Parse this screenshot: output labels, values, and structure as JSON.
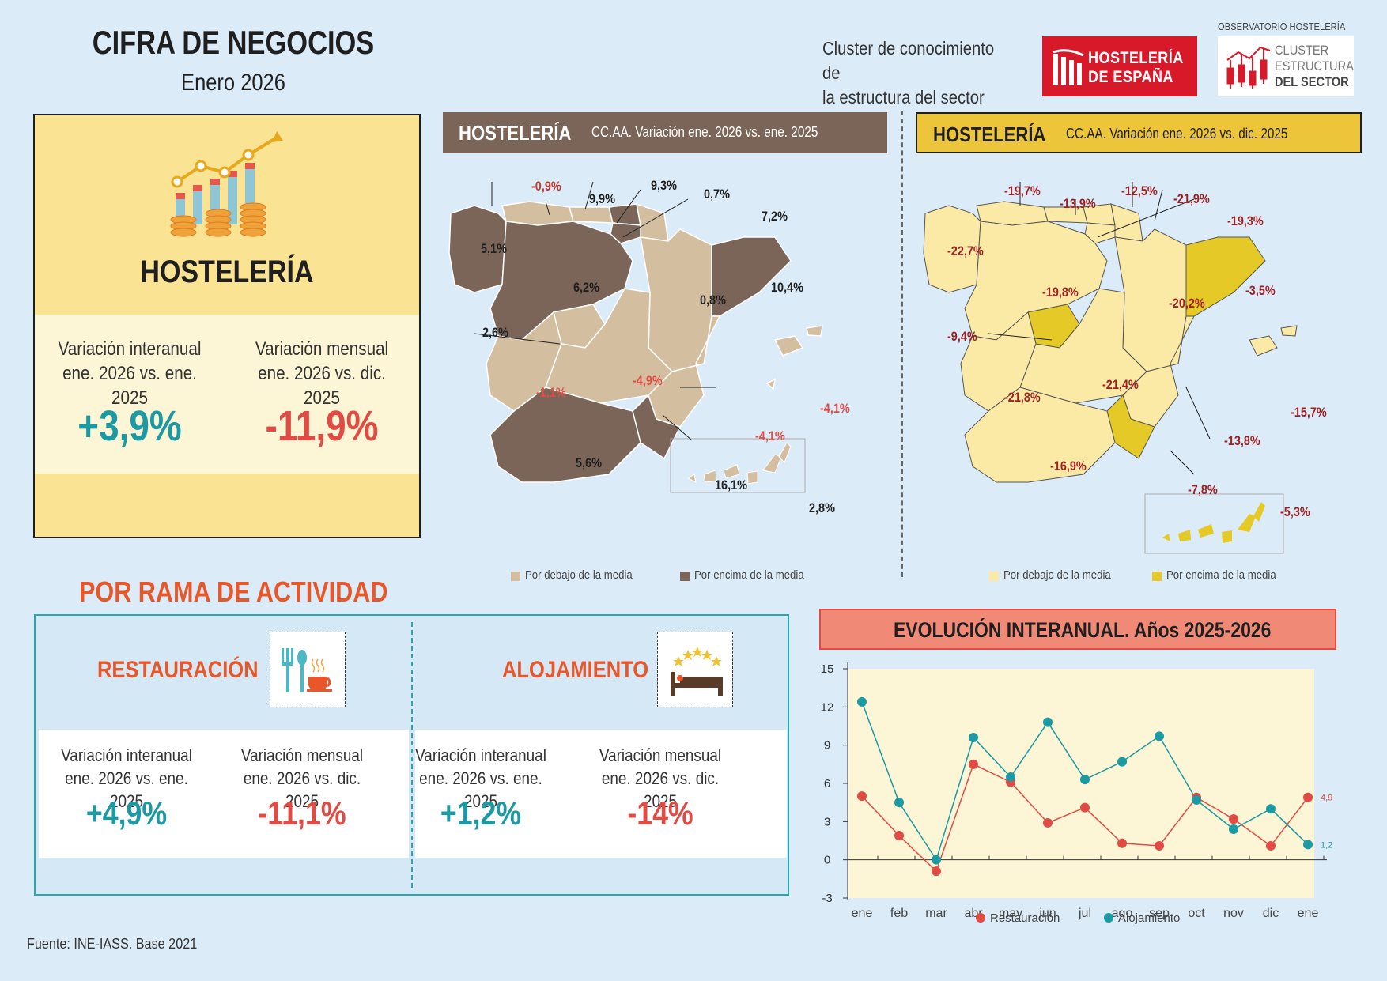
{
  "header": {
    "title": "CIFRA DE NEGOCIOS",
    "subtitle": "Enero 2026",
    "cluster_line1": "Cluster de conocimiento de",
    "cluster_line2": "la estructura del sector",
    "logo_he_line1": "HOSTELERÍA",
    "logo_he_line2": "DE ESPAÑA",
    "observatorio": "OBSERVATORIO HOSTELERÍA",
    "logo_cl_line1": "CLUSTER",
    "logo_cl_line2": "ESTRUCTURA",
    "logo_cl_line3": "DEL SECTOR"
  },
  "hosteleria_card": {
    "name": "HOSTELERÍA",
    "interanual_label1": "Variación interanual",
    "interanual_label2": "ene. 2026 vs. ene. 2025",
    "interanual_value": "+3,9%",
    "mensual_label1": "Variación mensual",
    "mensual_label2": "ene. 2026 vs. dic. 2025",
    "mensual_value": "-11,9%"
  },
  "map_left": {
    "header": "HOSTELERÍA",
    "subheader": "CC.AA. Variación ene. 2026 vs. ene. 2025",
    "legend_below": "Por debajo de la media",
    "legend_above": "Por encima de la media",
    "colors": {
      "below": "#d3bf9f",
      "above": "#7a6558"
    },
    "labels": {
      "asturias": "-0,9%",
      "cantabria": "9,9%",
      "pais_vasco": "9,3%",
      "navarra": "0,7%",
      "rioja": "7,2%",
      "galicia": "5,1%",
      "castilla_leon": "6,2%",
      "aragon": "0,8%",
      "cataluna": "10,4%",
      "madrid": "2,6%",
      "extremadura": "-1,1%",
      "castilla_mancha": "-4,9%",
      "valencia": "-4,1%",
      "baleares": "-4,1%",
      "andalucia": "5,6%",
      "murcia": "16,1%",
      "canarias": "2,8%"
    }
  },
  "map_right": {
    "header": "HOSTELERÍA",
    "subheader": "CC.AA. Variación ene. 2026 vs. dic. 2025",
    "legend_below": "Por debajo de la media",
    "legend_above": "Por encima de la media",
    "colors": {
      "below": "#fbe9a6",
      "above": "#e5c927"
    },
    "labels": {
      "asturias": "-19,7%",
      "cantabria": "-13,9%",
      "pais_vasco": "-12,5%",
      "navarra": "-21,9%",
      "rioja": "-19,3%",
      "galicia": "-22,7%",
      "castilla_leon": "-19,8%",
      "aragon": "-20,2%",
      "cataluna": "-3,5%",
      "madrid": "-9,4%",
      "extremadura": "-21,8%",
      "castilla_mancha": "-21,4%",
      "valencia": "-13,8%",
      "baleares": "-15,7%",
      "andalucia": "-16,9%",
      "murcia": "-7,8%",
      "canarias": "-5,3%"
    }
  },
  "rama": {
    "section_title": "POR RAMA DE ACTIVIDAD",
    "restauracion": {
      "title": "RESTAURACIÓN",
      "interanual_label1": "Variación interanual",
      "interanual_label2": "ene. 2026 vs. ene. 2025",
      "interanual_value": "+4,9%",
      "mensual_label1": "Variación mensual",
      "mensual_label2": "ene. 2026 vs. dic. 2025",
      "mensual_value": "-11,1%"
    },
    "alojamiento": {
      "title": "ALOJAMIENTO",
      "interanual_label1": "Variación interanual",
      "interanual_label2": "ene. 2026 vs. ene. 2025",
      "interanual_value": "+1,2%",
      "mensual_label1": "Variación mensual",
      "mensual_label2": "ene. 2026 vs. dic. 2025",
      "mensual_value": "-14%"
    }
  },
  "chart_data": {
    "type": "line",
    "title": "EVOLUCIÓN INTERANUAL. Años 2025-2026",
    "categories": [
      "ene",
      "feb",
      "mar",
      "abr",
      "may",
      "jun",
      "jul",
      "ago",
      "sep",
      "oct",
      "nov",
      "dic",
      "ene"
    ],
    "ylim": [
      -3,
      15
    ],
    "yticks": [
      "-3",
      "0",
      "3",
      "6",
      "9",
      "12",
      "15"
    ],
    "series": [
      {
        "name": "Restauración",
        "color": "#e14b44",
        "values": [
          5.0,
          1.9,
          -0.9,
          7.5,
          6.1,
          2.9,
          4.1,
          1.3,
          1.1,
          4.9,
          3.2,
          1.1,
          4.9
        ]
      },
      {
        "name": "Alojamiento",
        "color": "#1b9aa3",
        "values": [
          12.4,
          4.5,
          0.0,
          9.6,
          6.5,
          10.8,
          6.3,
          7.7,
          9.7,
          4.7,
          2.4,
          4.0,
          1.2
        ]
      }
    ],
    "end_labels": {
      "Restauración": "4,9",
      "Alojamiento": "1,2"
    }
  },
  "footer": {
    "source": "Fuente: INE-IASS. Base 2021"
  }
}
